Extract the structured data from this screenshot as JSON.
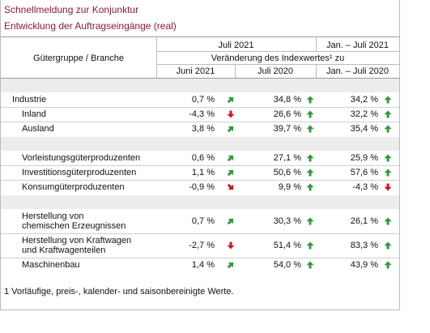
{
  "header": {
    "title": "Schnellmeldung zur Konjunktur",
    "subtitle": "Entwicklung der Auftragseingänge (real)"
  },
  "table": {
    "label_header": "Gütergruppe / Branche",
    "period_1": "Juli 2021",
    "period_2": "Jan. – Juli 2021",
    "change_header": "Veränderung des Indexwertes¹ zu",
    "columns": [
      "Juni 2021",
      "Juli 2020",
      "Jan. – Juli 2020"
    ],
    "groups": [
      {
        "rows": [
          {
            "label": "Industrie",
            "values": [
              "0,7 %",
              "34,8 %",
              "34,2 %"
            ]
          },
          {
            "label": "Inland",
            "values": [
              "-4,3 %",
              "26,6 %",
              "32,2 %"
            ]
          },
          {
            "label": "Ausland",
            "values": [
              "3,8 %",
              "39,7 %",
              "35,4 %"
            ]
          }
        ]
      },
      {
        "rows": [
          {
            "label": "Vorleistungsgüterproduzenten",
            "values": [
              "0,6 %",
              "27,1 %",
              "25,9 %"
            ]
          },
          {
            "label": "Investitionsgüterproduzenten",
            "values": [
              "1,1 %",
              "50,6 %",
              "57,6 %"
            ]
          },
          {
            "label": "Konsumgüterproduzenten",
            "values": [
              "-0,9 %",
              "9,9 %",
              "-4,3 %"
            ]
          }
        ]
      },
      {
        "rows": [
          {
            "label": "Herstellung von\nchemischen Erzeugnissen",
            "values": [
              "0,7 %",
              "30,3 %",
              "26,1 %"
            ]
          },
          {
            "label": "Herstellung von Kraftwagen\nund Kraftwagenteilen",
            "values": [
              "-2,7 %",
              "51,4 %",
              "83,3 %"
            ]
          },
          {
            "label": "Maschinenbau",
            "values": [
              "1,4 %",
              "54,0 %",
              "43,9 %"
            ]
          }
        ]
      }
    ]
  },
  "footnote": "1 Vorläufige, preis-, kalender- und saisonbereinigte Werte."
}
